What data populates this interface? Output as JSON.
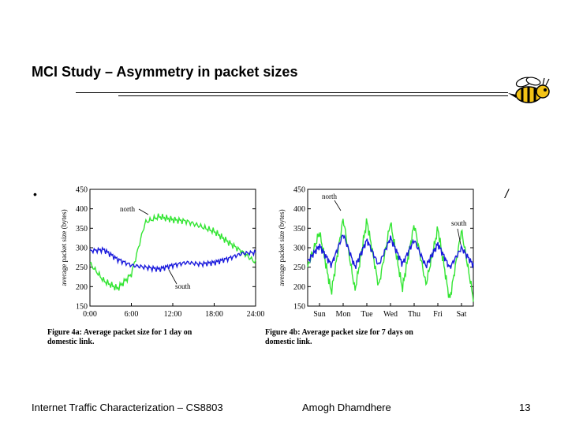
{
  "slide": {
    "title": "MCI Study – Asymmetry in packet sizes",
    "bullet": "•",
    "slash": "/",
    "colors": {
      "north": "#33e533",
      "south": "#1a1adc",
      "text": "#000000"
    }
  },
  "chart_data": [
    {
      "type": "line",
      "ylabel": "average packet size (bytes)",
      "xlabel": "",
      "ylim": [
        150,
        450
      ],
      "yticks": [
        150,
        200,
        250,
        300,
        350,
        400,
        450
      ],
      "categories": [
        "0:00",
        "6:00",
        "12:00",
        "18:00",
        "24:00"
      ],
      "x": [
        0,
        2,
        4,
        6,
        8,
        10,
        12,
        14,
        16,
        18,
        20,
        22,
        24
      ],
      "series": [
        {
          "name": "north",
          "values": [
            260,
            215,
            195,
            232,
            365,
            380,
            372,
            368,
            355,
            342,
            315,
            290,
            262
          ]
        },
        {
          "name": "south",
          "values": [
            292,
            295,
            270,
            255,
            250,
            245,
            255,
            262,
            258,
            262,
            272,
            285,
            288
          ]
        }
      ],
      "annotations": [
        "north",
        "south"
      ],
      "caption": "Figure 4a: Average packet size for 1 day on domestic link."
    },
    {
      "type": "line",
      "ylabel": "average packet size (bytes)",
      "xlabel": "",
      "ylim": [
        150,
        450
      ],
      "yticks": [
        150,
        200,
        250,
        300,
        350,
        400,
        450
      ],
      "categories": [
        "Sun",
        "Mon",
        "Tue",
        "Wed",
        "Thu",
        "Fri",
        "Sat"
      ],
      "x": [
        0,
        0.5,
        1,
        1.5,
        2,
        2.5,
        3,
        3.5,
        4,
        4.5,
        5,
        5.5,
        6,
        6.5,
        7
      ],
      "series": [
        {
          "name": "north",
          "values": [
            250,
            340,
            185,
            375,
            190,
            370,
            200,
            365,
            195,
            360,
            205,
            350,
            165,
            345,
            170
          ]
        },
        {
          "name": "south",
          "values": [
            265,
            305,
            255,
            335,
            250,
            320,
            255,
            325,
            258,
            320,
            252,
            310,
            248,
            300,
            255
          ]
        }
      ],
      "annotations": [
        "north",
        "south"
      ],
      "caption": "Figure 4b: Average packet size for 7 days on domestic link."
    }
  ],
  "footer": {
    "left": "Internet Traffic Characterization – CS8803",
    "middle": "Amogh Dhamdhere",
    "page": "13"
  }
}
